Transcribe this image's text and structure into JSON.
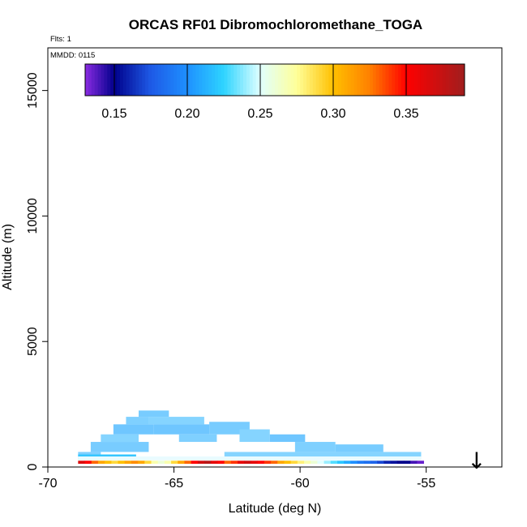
{
  "chart_data": {
    "type": "heatmap",
    "title": "ORCAS RF01 Dibromochloromethane_TOGA",
    "flights_label": "Flts: 1",
    "mmdd_label": "MMDD: 0115",
    "xlabel": "Latitude (deg N)",
    "ylabel": "Altitude (m)",
    "xlim": [
      -70,
      -52
    ],
    "ylim": [
      0,
      16700
    ],
    "x_ticks": [
      -70,
      -65,
      -60,
      -55
    ],
    "x_tick_labels": [
      "-70",
      "-65",
      "-60",
      "-55"
    ],
    "y_ticks": [
      0,
      5000,
      10000,
      15000
    ],
    "y_tick_labels": [
      "0",
      "5000",
      "10000",
      "15000"
    ],
    "colorbar": {
      "range": [
        0.13,
        0.39
      ],
      "ticks": [
        0.15,
        0.2,
        0.25,
        0.3,
        0.35
      ],
      "tick_labels": [
        "0.15",
        "0.20",
        "0.25",
        "0.30",
        "0.35"
      ],
      "stops": [
        {
          "v": 0.13,
          "c": "#8a2be2"
        },
        {
          "v": 0.15,
          "c": "#00008b"
        },
        {
          "v": 0.175,
          "c": "#1e5ae6"
        },
        {
          "v": 0.2,
          "c": "#1e90ff"
        },
        {
          "v": 0.225,
          "c": "#2ed4ff"
        },
        {
          "v": 0.25,
          "c": "#e0ffff"
        },
        {
          "v": 0.275,
          "c": "#ffff99"
        },
        {
          "v": 0.3,
          "c": "#ffc000"
        },
        {
          "v": 0.325,
          "c": "#ff8000"
        },
        {
          "v": 0.35,
          "c": "#ff0000"
        },
        {
          "v": 0.39,
          "c": "#a01e1e"
        }
      ]
    },
    "profile_cells": [
      {
        "lat0": -68.8,
        "lat1": -67.9,
        "alt0": 300,
        "alt1": 600,
        "value": 0.222
      },
      {
        "lat0": -68.3,
        "lat1": -66.0,
        "alt0": 600,
        "alt1": 1000,
        "value": 0.222
      },
      {
        "lat0": -67.9,
        "lat1": -66.4,
        "alt0": 1000,
        "alt1": 1300,
        "value": 0.222
      },
      {
        "lat0": -67.4,
        "lat1": -65.8,
        "alt0": 1300,
        "alt1": 1700,
        "value": 0.222
      },
      {
        "lat0": -66.9,
        "lat1": -66.0,
        "alt0": 1700,
        "alt1": 2000,
        "value": 0.222
      },
      {
        "lat0": -66.4,
        "lat1": -65.2,
        "alt0": 2000,
        "alt1": 2250,
        "value": 0.222
      },
      {
        "lat0": -66.0,
        "lat1": -63.8,
        "alt0": 1700,
        "alt1": 2000,
        "value": 0.222
      },
      {
        "lat0": -65.8,
        "lat1": -63.6,
        "alt0": 1300,
        "alt1": 1700,
        "value": 0.222
      },
      {
        "lat0": -64.8,
        "lat1": -63.3,
        "alt0": 1000,
        "alt1": 1300,
        "value": 0.222
      },
      {
        "lat0": -63.6,
        "lat1": -62.0,
        "alt0": 1300,
        "alt1": 1800,
        "value": 0.222
      },
      {
        "lat0": -62.4,
        "lat1": -61.2,
        "alt0": 1000,
        "alt1": 1500,
        "value": 0.222
      },
      {
        "lat0": -61.2,
        "lat1": -59.8,
        "alt0": 1000,
        "alt1": 1300,
        "value": 0.222
      },
      {
        "lat0": -60.2,
        "lat1": -58.6,
        "alt0": 600,
        "alt1": 1000,
        "value": 0.222
      },
      {
        "lat0": -58.6,
        "lat1": -56.7,
        "alt0": 600,
        "alt1": 900,
        "value": 0.222
      },
      {
        "lat0": -63.0,
        "lat1": -55.2,
        "alt0": 300,
        "alt1": 600,
        "value": 0.222
      }
    ],
    "surface_values": [
      0.365,
      0.35,
      0.33,
      0.31,
      0.3,
      0.29,
      0.3,
      0.31,
      0.32,
      0.31,
      0.29,
      0.27,
      0.26,
      0.27,
      0.29,
      0.31,
      0.33,
      0.35,
      0.37,
      0.38,
      0.36,
      0.35,
      0.33,
      0.34,
      0.36,
      0.37,
      0.36,
      0.35,
      0.34,
      0.33,
      0.31,
      0.3,
      0.29,
      0.28,
      0.27,
      0.26,
      0.25,
      0.24,
      0.23,
      0.22,
      0.21,
      0.2,
      0.19,
      0.185,
      0.18,
      0.17,
      0.16,
      0.155,
      0.15,
      0.15,
      0.14,
      0.135
    ],
    "surface_lat_range": [
      -68.8,
      -55.1
    ],
    "arrow_lat": -53.0,
    "arrow_label": "↓"
  }
}
